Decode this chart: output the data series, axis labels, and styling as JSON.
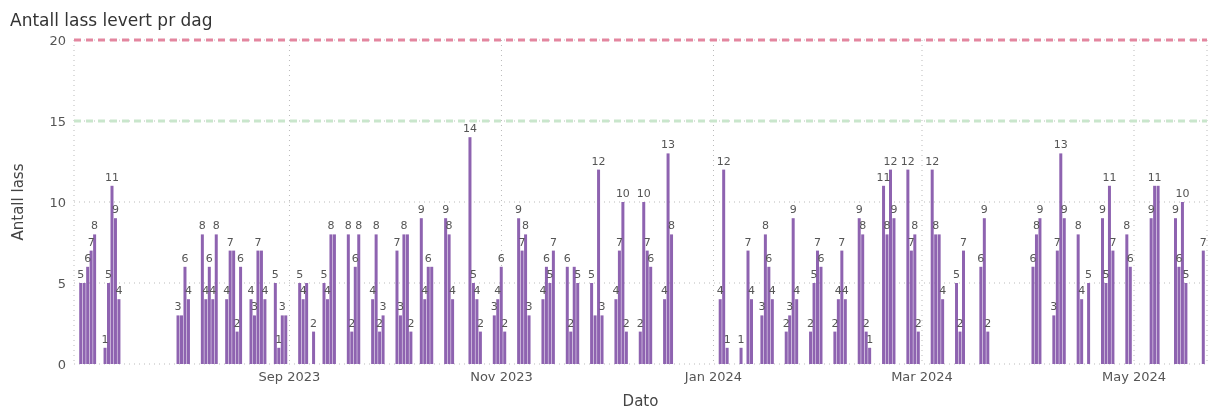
{
  "chart_data": {
    "type": "bar",
    "title": "Antall lass levert pr dag",
    "xlabel": "Dato",
    "ylabel": "Antall lass",
    "x": [
      "2023-07-03",
      "2023-07-04",
      "2023-07-05",
      "2023-07-06",
      "2023-07-07",
      "2023-07-10",
      "2023-07-11",
      "2023-07-12",
      "2023-07-13",
      "2023-07-14",
      "2023-07-31",
      "2023-08-01",
      "2023-08-02",
      "2023-08-03",
      "2023-08-07",
      "2023-08-08",
      "2023-08-09",
      "2023-08-10",
      "2023-08-11",
      "2023-08-14",
      "2023-08-15",
      "2023-08-16",
      "2023-08-17",
      "2023-08-18",
      "2023-08-21",
      "2023-08-22",
      "2023-08-23",
      "2023-08-24",
      "2023-08-25",
      "2023-08-28",
      "2023-08-29",
      "2023-08-30",
      "2023-08-31",
      "2023-09-04",
      "2023-09-05",
      "2023-09-06",
      "2023-09-08",
      "2023-09-11",
      "2023-09-12",
      "2023-09-13",
      "2023-09-14",
      "2023-09-18",
      "2023-09-19",
      "2023-09-20",
      "2023-09-21",
      "2023-09-25",
      "2023-09-26",
      "2023-09-27",
      "2023-09-28",
      "2023-10-02",
      "2023-10-03",
      "2023-10-04",
      "2023-10-05",
      "2023-10-06",
      "2023-10-09",
      "2023-10-10",
      "2023-10-11",
      "2023-10-12",
      "2023-10-16",
      "2023-10-17",
      "2023-10-18",
      "2023-10-23",
      "2023-10-24",
      "2023-10-25",
      "2023-10-26",
      "2023-10-30",
      "2023-10-31",
      "2023-11-01",
      "2023-11-02",
      "2023-11-06",
      "2023-11-07",
      "2023-11-08",
      "2023-11-09",
      "2023-11-13",
      "2023-11-14",
      "2023-11-15",
      "2023-11-16",
      "2023-11-20",
      "2023-11-21",
      "2023-11-22",
      "2023-11-23",
      "2023-11-27",
      "2023-11-28",
      "2023-11-29",
      "2023-11-30",
      "2023-12-04",
      "2023-12-05",
      "2023-12-06",
      "2023-12-07",
      "2023-12-11",
      "2023-12-12",
      "2023-12-13",
      "2023-12-14",
      "2023-12-18",
      "2023-12-19",
      "2023-12-20",
      "2024-01-03",
      "2024-01-04",
      "2024-01-05",
      "2024-01-09",
      "2024-01-11",
      "2024-01-12",
      "2024-01-15",
      "2024-01-16",
      "2024-01-17",
      "2024-01-18",
      "2024-01-22",
      "2024-01-23",
      "2024-01-24",
      "2024-01-25",
      "2024-01-29",
      "2024-01-30",
      "2024-01-31",
      "2024-02-01",
      "2024-02-05",
      "2024-02-06",
      "2024-02-07",
      "2024-02-08",
      "2024-02-12",
      "2024-02-13",
      "2024-02-14",
      "2024-02-15",
      "2024-02-19",
      "2024-02-20",
      "2024-02-21",
      "2024-02-22",
      "2024-02-26",
      "2024-02-27",
      "2024-02-28",
      "2024-02-29",
      "2024-03-04",
      "2024-03-05",
      "2024-03-06",
      "2024-03-07",
      "2024-03-11",
      "2024-03-12",
      "2024-03-13",
      "2024-03-18",
      "2024-03-19",
      "2024-03-20",
      "2024-04-02",
      "2024-04-03",
      "2024-04-04",
      "2024-04-08",
      "2024-04-09",
      "2024-04-10",
      "2024-04-11",
      "2024-04-15",
      "2024-04-16",
      "2024-04-18",
      "2024-04-22",
      "2024-04-23",
      "2024-04-24",
      "2024-04-25",
      "2024-04-29",
      "2024-04-30",
      "2024-05-06",
      "2024-05-07",
      "2024-05-08",
      "2024-05-13",
      "2024-05-14",
      "2024-05-15",
      "2024-05-16",
      "2024-05-21"
    ],
    "values": [
      5,
      5,
      6,
      7,
      8,
      1,
      5,
      11,
      9,
      4,
      3,
      3,
      6,
      4,
      8,
      4,
      6,
      4,
      8,
      4,
      7,
      7,
      2,
      6,
      4,
      3,
      7,
      7,
      4,
      5,
      1,
      3,
      3,
      5,
      4,
      5,
      2,
      5,
      4,
      8,
      8,
      8,
      2,
      6,
      8,
      4,
      8,
      2,
      3,
      7,
      3,
      8,
      8,
      2,
      9,
      4,
      6,
      6,
      9,
      8,
      4,
      14,
      5,
      4,
      2,
      3,
      4,
      6,
      2,
      9,
      7,
      8,
      3,
      4,
      6,
      5,
      7,
      6,
      2,
      6,
      5,
      5,
      3,
      12,
      3,
      4,
      7,
      10,
      2,
      2,
      10,
      7,
      6,
      4,
      13,
      8,
      4,
      12,
      1,
      1,
      7,
      4,
      3,
      8,
      6,
      4,
      2,
      3,
      9,
      4,
      2,
      5,
      7,
      6,
      2,
      4,
      7,
      4,
      9,
      8,
      2,
      1,
      11,
      8,
      12,
      9,
      12,
      7,
      8,
      2,
      12,
      8,
      8,
      4,
      5,
      2,
      7,
      6,
      9,
      2,
      6,
      8,
      9,
      3,
      7,
      13,
      9,
      8,
      4,
      5,
      9,
      5,
      11,
      7,
      8,
      6,
      9,
      11,
      11,
      9,
      6,
      10,
      5,
      7
    ],
    "value_labels": [
      "5",
      null,
      "6",
      "7",
      "8",
      "1",
      "5",
      "11",
      "9",
      "4",
      "3",
      null,
      "6",
      "4",
      "8",
      "4",
      "6",
      "4",
      "8",
      "4",
      "7",
      null,
      "2",
      "6",
      "4",
      "3",
      "7",
      null,
      "4",
      "5",
      "1",
      "3",
      null,
      "5",
      "4",
      null,
      "2",
      "5",
      "4",
      "8",
      null,
      "8",
      "2",
      "6",
      "8",
      "4",
      "8",
      "2",
      "3",
      "7",
      "3",
      "8",
      null,
      "2",
      "9",
      "4",
      "6",
      null,
      "9",
      "8",
      "4",
      "14",
      "5",
      "4",
      "2",
      "3",
      "4",
      "6",
      "2",
      "9",
      "7",
      "8",
      "3",
      "4",
      "6",
      "5",
      "7",
      "6",
      "2",
      null,
      "5",
      "5",
      null,
      "12",
      "3",
      "4",
      "7",
      "10",
      "2",
      "2",
      "10",
      "7",
      "6",
      "4",
      "13",
      "8",
      "4",
      "12",
      "1",
      "1",
      "7",
      "4",
      "3",
      "8",
      "6",
      "4",
      "2",
      "3",
      "9",
      "4",
      "2",
      "5",
      "7",
      "6",
      "2",
      "4",
      "7",
      "4",
      "9",
      "8",
      "2",
      "1",
      "11",
      "8",
      "12",
      "9",
      "12",
      "7",
      "8",
      "2",
      "12",
      "8",
      null,
      "4",
      "5",
      "2",
      "7",
      "6",
      "9",
      "2",
      "6",
      "8",
      "9",
      "3",
      "7",
      "13",
      "9",
      "8",
      "4",
      "5",
      "9",
      "5",
      "11",
      "7",
      "8",
      "6",
      "9",
      "11",
      null,
      "9",
      "6",
      "10",
      "5",
      "7"
    ],
    "color": "#8e63b0",
    "xlim": [
      "2023-07-01",
      "2024-05-22"
    ],
    "xticks": [
      {
        "value": "2023-09-01",
        "label": "Sep 2023"
      },
      {
        "value": "2023-11-01",
        "label": "Nov 2023"
      },
      {
        "value": "2024-01-01",
        "label": "Jan 2024"
      },
      {
        "value": "2024-03-01",
        "label": "Mar 2024"
      },
      {
        "value": "2024-05-01",
        "label": "May 2024"
      }
    ],
    "ylim": [
      0,
      20
    ],
    "yticks": [
      0,
      5,
      10,
      15,
      20
    ],
    "grid": true,
    "ref_lines": [
      {
        "axis": "y",
        "value": 20,
        "color": "#e3869f",
        "line_style": "dashed"
      },
      {
        "axis": "y",
        "value": 15,
        "color": "#c9e6cc",
        "line_style": "dashed"
      }
    ]
  }
}
